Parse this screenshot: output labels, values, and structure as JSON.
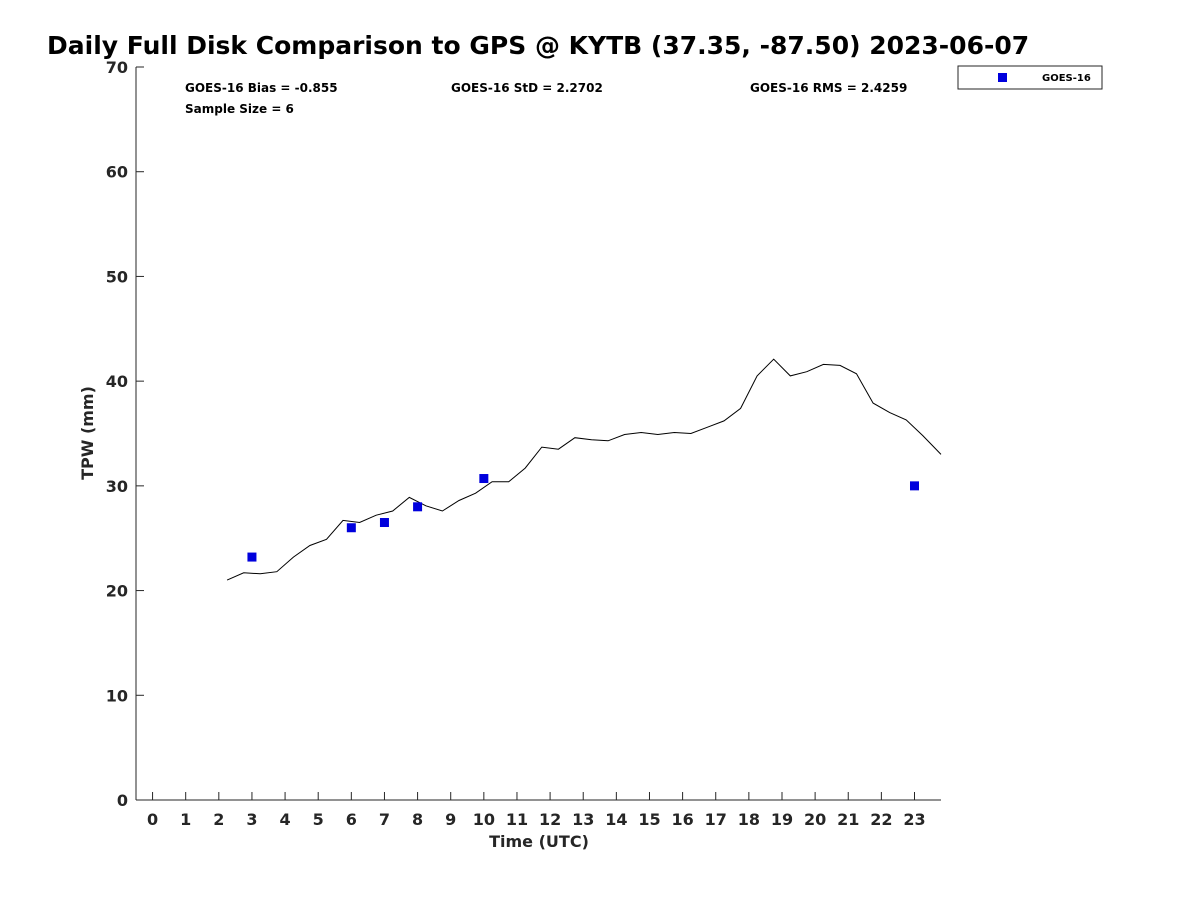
{
  "chart_data": {
    "type": "scatter",
    "title": "Daily Full Disk Comparison to GPS @ KYTB (37.35, -87.50) 2023-06-07",
    "xlabel": "Time (UTC)",
    "ylabel": "TPW (mm)",
    "xlim": [
      -0.5,
      23.8
    ],
    "ylim": [
      0,
      70
    ],
    "xticks": [
      0,
      1,
      2,
      3,
      4,
      5,
      6,
      7,
      8,
      9,
      10,
      11,
      12,
      13,
      14,
      15,
      16,
      17,
      18,
      19,
      20,
      21,
      22,
      23
    ],
    "yticks": [
      0,
      10,
      20,
      30,
      40,
      50,
      60,
      70
    ],
    "grid": false,
    "legend": {
      "position": "outside-top-right",
      "entries": [
        "GOES-16"
      ]
    },
    "stats": {
      "bias": "GOES-16 Bias = -0.855",
      "std": "GOES-16 StD = 2.2702",
      "rms": "GOES-16 RMS = 2.4259",
      "sample": "Sample Size = 6"
    },
    "series": [
      {
        "name": "GOES-16",
        "kind": "scatter",
        "marker": "square",
        "color": "#0000dd",
        "x": [
          3.0,
          6.0,
          7.0,
          8.0,
          10.0,
          23.0
        ],
        "y": [
          23.2,
          26.0,
          26.5,
          28.0,
          30.7,
          30.0
        ]
      },
      {
        "kind": "line",
        "color": "#000000",
        "x": [
          2.25,
          2.75,
          3.25,
          3.75,
          4.25,
          4.75,
          5.25,
          5.75,
          6.25,
          6.75,
          7.25,
          7.75,
          8.25,
          8.75,
          9.25,
          9.75,
          10.25,
          10.75,
          11.25,
          11.75,
          12.25,
          12.75,
          13.25,
          13.75,
          14.25,
          14.75,
          15.25,
          15.75,
          16.25,
          16.75,
          17.25,
          17.75,
          18.25,
          18.75,
          19.25,
          19.75,
          20.25,
          20.75,
          21.25,
          21.75,
          22.25,
          22.75,
          23.25,
          23.8
        ],
        "y": [
          21.0,
          21.7,
          21.6,
          21.8,
          23.2,
          24.3,
          24.9,
          26.7,
          26.5,
          27.2,
          27.6,
          28.9,
          28.1,
          27.6,
          28.6,
          29.3,
          30.4,
          30.4,
          31.7,
          33.7,
          33.5,
          34.6,
          34.4,
          34.3,
          34.9,
          35.1,
          34.9,
          35.1,
          35.0,
          35.6,
          36.2,
          37.4,
          40.5,
          42.1,
          40.5,
          40.9,
          41.6,
          41.5,
          40.7,
          37.9,
          37.0,
          36.3,
          34.8,
          33.0
        ]
      }
    ]
  }
}
